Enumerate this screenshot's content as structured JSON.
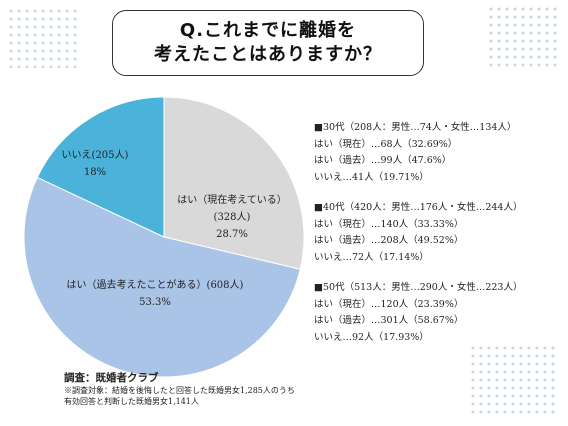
{
  "title": {
    "line1": "Q.これまでに離婚を",
    "line2": "考えたことはありますか？"
  },
  "chart_data": {
    "type": "pie",
    "slices": [
      {
        "label": "はい（現在考えている）",
        "count": "(328人)",
        "value": 28.7,
        "pct_label": "28.7%",
        "color": "#d9d9d9"
      },
      {
        "label": "はい（過去考えたことがある）",
        "count": "(608人)",
        "value": 53.3,
        "pct_label": "53.3%",
        "color": "#a9c4e6"
      },
      {
        "label": "いいえ",
        "count": "(205人)",
        "value": 18,
        "pct_label": "18%",
        "color": "#4bb3d9"
      }
    ]
  },
  "stats": [
    {
      "header": "■30代（208人：男性…74人・女性…134人）",
      "rows": [
        "はい（現在）…68人（32.69%）",
        "はい（過去）…99人（47.6%）",
        "いいえ…41人（19.71%）"
      ]
    },
    {
      "header": "■40代（420人：男性…176人・女性…244人）",
      "rows": [
        "はい（現在）…140人（33.33%）",
        "はい（過去）…208人（49.52%）",
        "いいえ…72人（17.14%）"
      ]
    },
    {
      "header": "■50代（513人：男性…290人・女性…223人）",
      "rows": [
        "はい（現在）…120人（23.39%）",
        "はい（過去）…301人（58.67%）",
        "いいえ…92人（17.93%）"
      ]
    }
  ],
  "footer": {
    "source": "調査：既婚者クラブ",
    "note_line1": "※調査対象：結婚を後悔したと回答した既婚男女1,285人のうち",
    "note_line2": "有効回答と判断した既婚男女1,141人"
  },
  "colors": {
    "dots": "#c9d6ea",
    "title_border": "#333333"
  }
}
